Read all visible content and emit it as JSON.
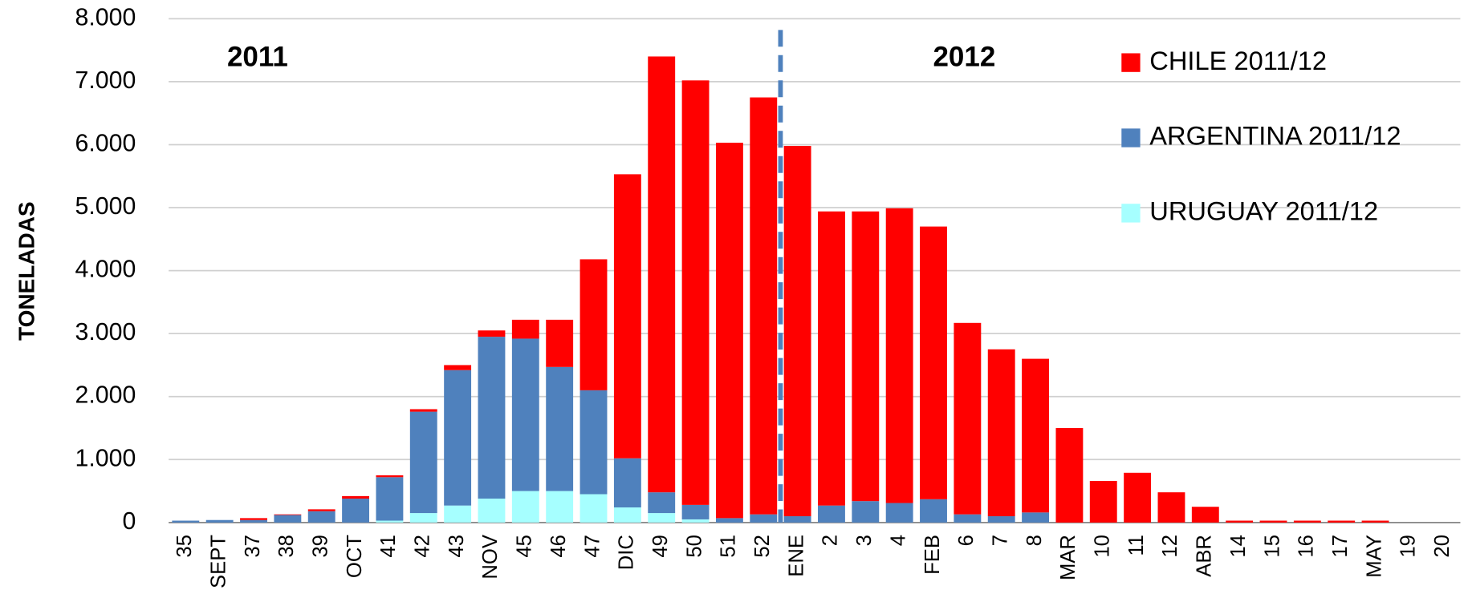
{
  "chart_data": {
    "type": "stacked_bar",
    "y_label": "TONELADAS",
    "annotations": [
      "2011",
      "2012"
    ],
    "categories": [
      "35",
      "SEPT",
      "37",
      "38",
      "39",
      "OCT",
      "41",
      "42",
      "43",
      "NOV",
      "45",
      "46",
      "47",
      "DIC",
      "49",
      "50",
      "51",
      "52",
      "ENE",
      "2",
      "3",
      "4",
      "FEB",
      "6",
      "7",
      "8",
      "MAR",
      "10",
      "11",
      "12",
      "ABR",
      "14",
      "15",
      "16",
      "17",
      "MAY",
      "19",
      "20"
    ],
    "series": [
      {
        "name": "URUGUAY 2011/12",
        "color": "#a6ffff",
        "values": [
          0,
          0,
          0,
          0,
          0,
          0,
          30,
          150,
          270,
          380,
          500,
          500,
          450,
          240,
          150,
          50,
          0,
          0,
          0,
          0,
          0,
          0,
          0,
          0,
          0,
          0,
          0,
          0,
          0,
          0,
          0,
          0,
          0,
          0,
          0,
          0,
          0,
          0
        ]
      },
      {
        "name": "ARGENTINA 2011/12",
        "color": "#4f81bd",
        "values": [
          30,
          40,
          40,
          120,
          180,
          380,
          690,
          1610,
          2150,
          2570,
          2420,
          1970,
          1650,
          780,
          330,
          230,
          70,
          130,
          100,
          270,
          340,
          310,
          370,
          130,
          100,
          160,
          0,
          0,
          0,
          0,
          0,
          0,
          0,
          0,
          0,
          0,
          0,
          0
        ]
      },
      {
        "name": "CHILE 2011/12",
        "color": "#ff0000",
        "values": [
          0,
          0,
          30,
          10,
          30,
          40,
          30,
          40,
          80,
          100,
          300,
          750,
          2080,
          4510,
          6920,
          6740,
          5960,
          6620,
          5880,
          4670,
          4600,
          4680,
          4330,
          3040,
          2650,
          2440,
          1500,
          660,
          790,
          480,
          250,
          30,
          30,
          30,
          30,
          30,
          0,
          0
        ]
      }
    ],
    "ylim": [
      0,
      8000
    ],
    "yticks": [
      0,
      {
        "value": 1000,
        "label": "1.000"
      },
      {
        "value": 2000,
        "label": "2.000"
      },
      {
        "value": 3000,
        "label": "3.000"
      },
      {
        "value": 4000,
        "label": "4.000"
      },
      {
        "value": 5000,
        "label": "5.000"
      },
      {
        "value": 6000,
        "label": "6.000"
      },
      {
        "value": 7000,
        "label": "7.000"
      },
      {
        "value": 8000,
        "label": "8.000"
      }
    ],
    "grid": true,
    "legend": "top-right"
  }
}
